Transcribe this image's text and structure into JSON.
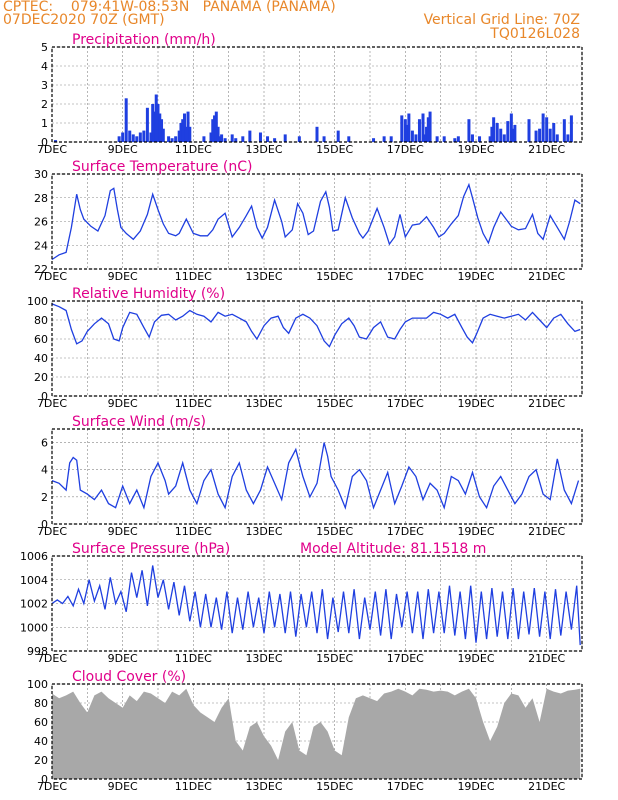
{
  "header": {
    "left_line1": "CPTEC:    079:41W-08:53N   PANAMA (PANAMA)",
    "left_line2": "07DEC2020 70Z (GMT)",
    "right_line1": "Vertical Grid Line: 70Z",
    "right_line2": "TQ0126L028"
  },
  "colors": {
    "header": "#e8872a",
    "title": "#e0008a",
    "series": "#1f3fe0",
    "cloud": "#a8a8a8",
    "grid": "#888888"
  },
  "chart_data": [
    {
      "id": "precip",
      "type": "bar",
      "title": "Precipitation (mm/h)",
      "ylim": [
        0,
        5
      ],
      "yticks": [
        0,
        1,
        2,
        3,
        4,
        5
      ],
      "xlim": [
        7,
        22
      ],
      "xticks": [
        "7DEC",
        "9DEC",
        "11DEC",
        "13DEC",
        "15DEC",
        "17DEC",
        "19DEC",
        "21DEC"
      ],
      "x": [
        7.1,
        8.9,
        9.0,
        9.1,
        9.2,
        9.3,
        9.4,
        9.5,
        9.6,
        9.7,
        9.8,
        9.85,
        9.9,
        9.95,
        10.0,
        10.05,
        10.1,
        10.15,
        10.3,
        10.4,
        10.5,
        10.6,
        10.65,
        10.7,
        10.75,
        10.8,
        10.85,
        10.9,
        11.3,
        11.5,
        11.55,
        11.6,
        11.65,
        11.7,
        11.75,
        11.8,
        11.9,
        12.1,
        12.2,
        12.4,
        12.6,
        12.9,
        13.1,
        13.3,
        13.6,
        14.0,
        14.5,
        14.7,
        15.1,
        15.4,
        16.1,
        16.4,
        16.6,
        16.9,
        17.0,
        17.05,
        17.1,
        17.2,
        17.3,
        17.4,
        17.5,
        17.55,
        17.6,
        17.65,
        17.7,
        17.9,
        18.1,
        18.4,
        18.5,
        18.8,
        18.9,
        19.1,
        19.4,
        19.45,
        19.5,
        19.6,
        19.7,
        19.8,
        19.9,
        20.0,
        20.05,
        20.1,
        20.5,
        20.7,
        20.8,
        20.9,
        21.0,
        21.1,
        21.2,
        21.3,
        21.5,
        21.6,
        21.7
      ],
      "values": [
        0.1,
        0.3,
        0.5,
        2.3,
        0.6,
        0.4,
        0.3,
        0.5,
        0.6,
        1.8,
        0.5,
        2.0,
        1.6,
        2.5,
        2.0,
        1.5,
        1.2,
        0.7,
        0.3,
        0.2,
        0.3,
        0.6,
        1.0,
        1.2,
        1.5,
        0.8,
        1.6,
        0.8,
        0.3,
        0.5,
        1.2,
        1.4,
        1.6,
        0.8,
        0.3,
        0.4,
        0.2,
        0.4,
        0.2,
        0.3,
        0.6,
        0.5,
        0.3,
        0.2,
        0.4,
        0.3,
        0.8,
        0.3,
        0.6,
        0.3,
        0.2,
        0.3,
        0.3,
        1.4,
        1.2,
        0.9,
        1.5,
        0.6,
        0.4,
        1.2,
        1.5,
        0.4,
        0.8,
        1.3,
        1.6,
        0.3,
        0.3,
        0.2,
        0.3,
        1.2,
        0.4,
        0.3,
        0.3,
        0.8,
        1.3,
        1.0,
        0.7,
        0.4,
        1.1,
        1.5,
        0.7,
        0.9,
        1.2,
        0.6,
        0.7,
        1.5,
        1.3,
        0.7,
        1.0,
        0.4,
        1.2,
        0.4,
        1.4
      ]
    },
    {
      "id": "temp",
      "type": "line",
      "title": "Surface Temperature (nC)",
      "ylim": [
        22,
        30
      ],
      "yticks": [
        22,
        24,
        26,
        28,
        30
      ],
      "xlim": [
        7,
        22
      ],
      "xticks": [
        "7DEC",
        "9DEC",
        "11DEC",
        "13DEC",
        "15DEC",
        "17DEC",
        "19DEC",
        "21DEC"
      ],
      "x": [
        7.0,
        7.2,
        7.4,
        7.55,
        7.7,
        7.8,
        7.9,
        8.1,
        8.3,
        8.5,
        8.65,
        8.75,
        8.85,
        8.95,
        9.1,
        9.3,
        9.5,
        9.7,
        9.85,
        10.0,
        10.15,
        10.3,
        10.5,
        10.6,
        10.8,
        11.0,
        11.2,
        11.4,
        11.55,
        11.7,
        11.9,
        12.1,
        12.3,
        12.5,
        12.65,
        12.8,
        12.95,
        13.1,
        13.3,
        13.5,
        13.6,
        13.8,
        13.95,
        14.1,
        14.25,
        14.4,
        14.6,
        14.75,
        14.85,
        14.95,
        15.1,
        15.3,
        15.5,
        15.7,
        15.8,
        15.95,
        16.2,
        16.4,
        16.55,
        16.7,
        16.85,
        17.0,
        17.2,
        17.4,
        17.6,
        17.8,
        17.95,
        18.1,
        18.3,
        18.5,
        18.65,
        18.8,
        18.9,
        19.05,
        19.2,
        19.35,
        19.5,
        19.7,
        19.9,
        20.0,
        20.2,
        20.4,
        20.6,
        20.75,
        20.9,
        21.1,
        21.3,
        21.5,
        21.65,
        21.8,
        21.95
      ],
      "values": [
        22.8,
        23.2,
        23.4,
        25.5,
        28.3,
        27.0,
        26.2,
        25.6,
        25.2,
        26.5,
        28.6,
        28.8,
        27.0,
        25.5,
        25.0,
        24.5,
        25.2,
        26.6,
        28.3,
        27.0,
        25.8,
        25.0,
        24.8,
        25.0,
        26.2,
        25.0,
        24.8,
        24.8,
        25.3,
        26.2,
        26.7,
        24.7,
        25.5,
        26.5,
        27.3,
        25.5,
        24.6,
        25.5,
        27.8,
        26.0,
        24.7,
        25.3,
        27.5,
        26.7,
        24.9,
        25.2,
        27.7,
        28.5,
        27.2,
        25.2,
        25.3,
        28.0,
        26.3,
        25.0,
        24.6,
        25.2,
        27.1,
        25.5,
        24.1,
        24.7,
        26.6,
        24.7,
        25.7,
        25.8,
        26.4,
        25.5,
        24.7,
        25.0,
        25.8,
        26.5,
        28.1,
        29.1,
        28.0,
        26.3,
        25.0,
        24.2,
        25.5,
        26.8,
        26.0,
        25.6,
        25.3,
        25.4,
        26.6,
        25.0,
        24.5,
        26.5,
        25.5,
        24.5,
        26.0,
        27.8,
        27.5
      ]
    },
    {
      "id": "rh",
      "type": "line",
      "title": "Relative Humidity (%)",
      "ylim": [
        0,
        100
      ],
      "yticks": [
        0,
        20,
        40,
        60,
        80,
        100
      ],
      "xlim": [
        7,
        22
      ],
      "xticks": [
        "7DEC",
        "9DEC",
        "11DEC",
        "13DEC",
        "15DEC",
        "17DEC",
        "19DEC",
        "21DEC"
      ],
      "x": [
        7.0,
        7.2,
        7.4,
        7.55,
        7.7,
        7.85,
        8.0,
        8.2,
        8.4,
        8.6,
        8.75,
        8.9,
        9.0,
        9.2,
        9.4,
        9.6,
        9.75,
        9.9,
        10.1,
        10.3,
        10.5,
        10.7,
        10.9,
        11.1,
        11.3,
        11.5,
        11.7,
        11.9,
        12.1,
        12.3,
        12.5,
        12.65,
        12.8,
        13.0,
        13.2,
        13.4,
        13.55,
        13.7,
        13.9,
        14.1,
        14.3,
        14.5,
        14.7,
        14.85,
        15.0,
        15.2,
        15.4,
        15.55,
        15.7,
        15.9,
        16.1,
        16.3,
        16.5,
        16.7,
        16.85,
        17.0,
        17.2,
        17.4,
        17.6,
        17.8,
        18.0,
        18.2,
        18.4,
        18.6,
        18.75,
        18.9,
        19.0,
        19.2,
        19.4,
        19.6,
        19.8,
        20.0,
        20.2,
        20.4,
        20.6,
        20.8,
        21.0,
        21.2,
        21.4,
        21.6,
        21.8,
        21.95
      ],
      "values": [
        97,
        94,
        90,
        70,
        55,
        58,
        68,
        76,
        82,
        76,
        60,
        58,
        72,
        88,
        86,
        72,
        62,
        78,
        85,
        86,
        80,
        84,
        90,
        86,
        84,
        78,
        88,
        84,
        86,
        82,
        78,
        68,
        60,
        74,
        82,
        84,
        72,
        66,
        82,
        86,
        82,
        74,
        58,
        52,
        64,
        76,
        82,
        74,
        62,
        60,
        72,
        78,
        62,
        60,
        70,
        78,
        82,
        82,
        82,
        88,
        86,
        82,
        86,
        72,
        62,
        56,
        64,
        82,
        86,
        84,
        82,
        84,
        86,
        80,
        88,
        80,
        72,
        82,
        86,
        76,
        68,
        70
      ]
    },
    {
      "id": "wind",
      "type": "line",
      "title": "Surface Wind (m/s)",
      "ylim": [
        0,
        7
      ],
      "yticks": [
        0,
        2,
        4,
        6
      ],
      "xlim": [
        7,
        22
      ],
      "xticks": [
        "7DEC",
        "9DEC",
        "11DEC",
        "13DEC",
        "15DEC",
        "17DEC",
        "19DEC",
        "21DEC"
      ],
      "x": [
        7.0,
        7.2,
        7.4,
        7.5,
        7.6,
        7.7,
        7.8,
        8.0,
        8.2,
        8.4,
        8.6,
        8.8,
        9.0,
        9.2,
        9.4,
        9.6,
        9.8,
        10.0,
        10.2,
        10.3,
        10.5,
        10.7,
        10.9,
        11.1,
        11.3,
        11.5,
        11.7,
        11.9,
        12.1,
        12.3,
        12.5,
        12.7,
        12.9,
        13.1,
        13.3,
        13.5,
        13.7,
        13.9,
        14.1,
        14.3,
        14.5,
        14.7,
        14.8,
        14.9,
        15.1,
        15.3,
        15.5,
        15.7,
        15.9,
        16.1,
        16.3,
        16.5,
        16.7,
        16.9,
        17.1,
        17.3,
        17.5,
        17.7,
        17.9,
        18.1,
        18.3,
        18.5,
        18.7,
        18.9,
        19.1,
        19.3,
        19.5,
        19.7,
        19.9,
        20.1,
        20.3,
        20.5,
        20.7,
        20.9,
        21.1,
        21.3,
        21.5,
        21.7,
        21.9
      ],
      "values": [
        3.2,
        3.0,
        2.5,
        4.5,
        4.9,
        4.7,
        2.5,
        2.2,
        1.8,
        2.5,
        1.5,
        1.2,
        2.8,
        1.5,
        2.5,
        1.2,
        3.5,
        4.5,
        3.2,
        2.2,
        2.8,
        4.5,
        2.5,
        1.5,
        3.2,
        4.0,
        2.2,
        1.2,
        3.5,
        4.5,
        2.5,
        1.5,
        2.5,
        4.2,
        3.0,
        1.8,
        4.5,
        5.5,
        3.5,
        2.0,
        3.0,
        6.0,
        5.0,
        3.5,
        2.5,
        1.2,
        3.5,
        4.0,
        3.2,
        1.2,
        2.5,
        3.8,
        1.5,
        2.8,
        4.2,
        3.5,
        1.8,
        3.0,
        2.5,
        1.2,
        3.5,
        3.2,
        2.2,
        3.8,
        2.0,
        1.2,
        2.8,
        3.5,
        2.5,
        1.5,
        2.2,
        3.5,
        4.0,
        2.2,
        1.8,
        4.8,
        2.5,
        1.5,
        3.2
      ]
    },
    {
      "id": "pres",
      "type": "line",
      "title": "Surface Pressure (hPa)",
      "annotation": "Model Altitude: 81.1518 m",
      "ylim": [
        998,
        1006
      ],
      "yticks": [
        998,
        1000,
        1002,
        1004,
        1006
      ],
      "xlim": [
        7,
        22
      ],
      "xticks": [
        "7DEC",
        "9DEC",
        "11DEC",
        "13DEC",
        "15DEC",
        "17DEC",
        "19DEC",
        "21DEC"
      ],
      "x": [
        7.0,
        7.15,
        7.3,
        7.45,
        7.6,
        7.75,
        7.9,
        8.05,
        8.2,
        8.35,
        8.5,
        8.65,
        8.8,
        8.95,
        9.1,
        9.25,
        9.4,
        9.55,
        9.7,
        9.85,
        10.0,
        10.15,
        10.3,
        10.45,
        10.6,
        10.75,
        10.9,
        11.05,
        11.2,
        11.35,
        11.5,
        11.65,
        11.8,
        11.95,
        12.1,
        12.25,
        12.4,
        12.55,
        12.7,
        12.85,
        13.0,
        13.15,
        13.3,
        13.45,
        13.6,
        13.75,
        13.9,
        14.05,
        14.2,
        14.35,
        14.5,
        14.65,
        14.8,
        14.95,
        15.1,
        15.25,
        15.4,
        15.55,
        15.7,
        15.85,
        16.0,
        16.15,
        16.3,
        16.45,
        16.6,
        16.75,
        16.9,
        17.05,
        17.2,
        17.35,
        17.5,
        17.65,
        17.8,
        17.95,
        18.1,
        18.25,
        18.4,
        18.55,
        18.7,
        18.85,
        19.0,
        19.15,
        19.3,
        19.45,
        19.6,
        19.75,
        19.9,
        20.05,
        20.2,
        20.35,
        20.5,
        20.65,
        20.8,
        20.95,
        21.1,
        21.25,
        21.4,
        21.55,
        21.7,
        21.85,
        21.95
      ],
      "values": [
        1002.0,
        1002.3,
        1002.0,
        1002.6,
        1001.8,
        1003.2,
        1002.0,
        1004.0,
        1002.2,
        1003.5,
        1001.5,
        1004.2,
        1002.0,
        1003.0,
        1001.3,
        1004.6,
        1002.5,
        1004.8,
        1001.8,
        1005.2,
        1002.5,
        1004.0,
        1001.5,
        1003.8,
        1001.0,
        1003.5,
        1000.5,
        1003.0,
        1000.0,
        1002.8,
        1000.0,
        1002.5,
        999.8,
        1003.0,
        999.5,
        1002.5,
        999.8,
        1003.0,
        1000.0,
        1002.5,
        999.5,
        1003.0,
        1000.0,
        1002.8,
        999.5,
        1003.0,
        999.2,
        1002.8,
        1000.0,
        1003.0,
        999.5,
        1003.2,
        999.0,
        1002.5,
        999.6,
        1003.0,
        999.5,
        1003.2,
        999.0,
        1002.5,
        999.8,
        1003.0,
        999.3,
        1003.2,
        999.0,
        1002.8,
        1000.0,
        1003.0,
        999.5,
        1003.0,
        999.0,
        1003.2,
        999.5,
        1003.0,
        999.5,
        1003.5,
        999.3,
        1003.0,
        999.0,
        1003.5,
        998.7,
        1003.0,
        999.0,
        1003.3,
        999.2,
        1003.0,
        999.0,
        1003.3,
        999.0,
        1003.0,
        999.4,
        1003.3,
        999.2,
        1003.0,
        999.0,
        1003.2,
        999.3,
        1003.0,
        999.8,
        1003.5,
        998.5
      ]
    },
    {
      "id": "cloud",
      "type": "area",
      "title": "Cloud Cover (%)",
      "ylim": [
        0,
        100
      ],
      "yticks": [
        0,
        20,
        40,
        60,
        80,
        100
      ],
      "xlim": [
        7,
        22
      ],
      "xticks": [
        "7DEC",
        "9DEC",
        "11DEC",
        "13DEC",
        "15DEC",
        "17DEC",
        "19DEC",
        "21DEC"
      ],
      "x": [
        7.0,
        7.2,
        7.4,
        7.6,
        7.8,
        8.0,
        8.2,
        8.4,
        8.6,
        8.8,
        9.0,
        9.2,
        9.4,
        9.6,
        9.8,
        10.0,
        10.2,
        10.4,
        10.6,
        10.8,
        11.0,
        11.2,
        11.4,
        11.6,
        11.8,
        12.0,
        12.2,
        12.4,
        12.6,
        12.8,
        13.0,
        13.2,
        13.4,
        13.6,
        13.8,
        14.0,
        14.2,
        14.4,
        14.6,
        14.8,
        15.0,
        15.2,
        15.4,
        15.6,
        15.8,
        16.0,
        16.2,
        16.4,
        16.6,
        16.8,
        17.0,
        17.2,
        17.4,
        17.6,
        17.8,
        18.0,
        18.2,
        18.4,
        18.6,
        18.8,
        19.0,
        19.2,
        19.4,
        19.6,
        19.8,
        20.0,
        20.2,
        20.4,
        20.6,
        20.8,
        21.0,
        21.2,
        21.4,
        21.6,
        21.8,
        21.95
      ],
      "values": [
        90,
        85,
        88,
        92,
        80,
        70,
        88,
        92,
        85,
        80,
        75,
        88,
        82,
        92,
        90,
        85,
        80,
        92,
        88,
        95,
        78,
        70,
        65,
        60,
        75,
        85,
        40,
        30,
        55,
        60,
        45,
        35,
        20,
        50,
        60,
        30,
        25,
        55,
        60,
        50,
        30,
        25,
        65,
        85,
        88,
        85,
        82,
        90,
        92,
        95,
        92,
        88,
        95,
        94,
        92,
        93,
        92,
        88,
        92,
        95,
        85,
        60,
        40,
        55,
        80,
        90,
        88,
        75,
        85,
        60,
        95,
        92,
        90,
        93,
        94,
        95
      ]
    }
  ]
}
